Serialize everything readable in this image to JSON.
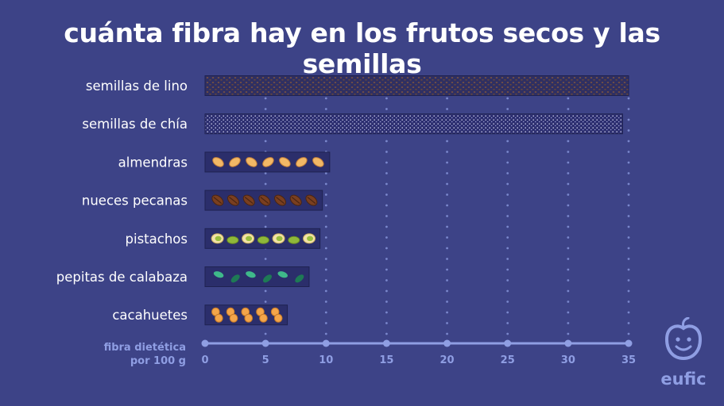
{
  "title": "cuánta fibra hay en los frutos secos y las semillas",
  "brand": {
    "name": "eufic",
    "logo_icon": "apple-face-icon"
  },
  "colors": {
    "background": "#3d4387",
    "bar": "#2b2e6b",
    "axis": "#8f9ee3",
    "text": "#ffffff"
  },
  "chart_data": {
    "type": "bar",
    "orientation": "horizontal",
    "title": "cuánta fibra hay en los frutos secos y las semillas",
    "xlabel_lines": [
      "fibra dietética",
      "por 100 g"
    ],
    "ylabel": "",
    "xlim": [
      0,
      35
    ],
    "xticks": [
      0,
      5,
      10,
      15,
      20,
      25,
      30,
      35
    ],
    "grid": true,
    "categories": [
      "semillas de lino",
      "semillas de chía",
      "almendras",
      "nueces pecanas",
      "pistachos",
      "pepitas de calabaza",
      "cacahuetes"
    ],
    "values": [
      35,
      34.5,
      10.3,
      9.7,
      9.5,
      8.6,
      6.8
    ],
    "fill_icons": [
      "flax-seed-pattern",
      "chia-seed-pattern",
      "almond-icon",
      "pecan-icon",
      "pistachio-icon",
      "pumpkin-seed-icon",
      "peanut-icon"
    ]
  }
}
